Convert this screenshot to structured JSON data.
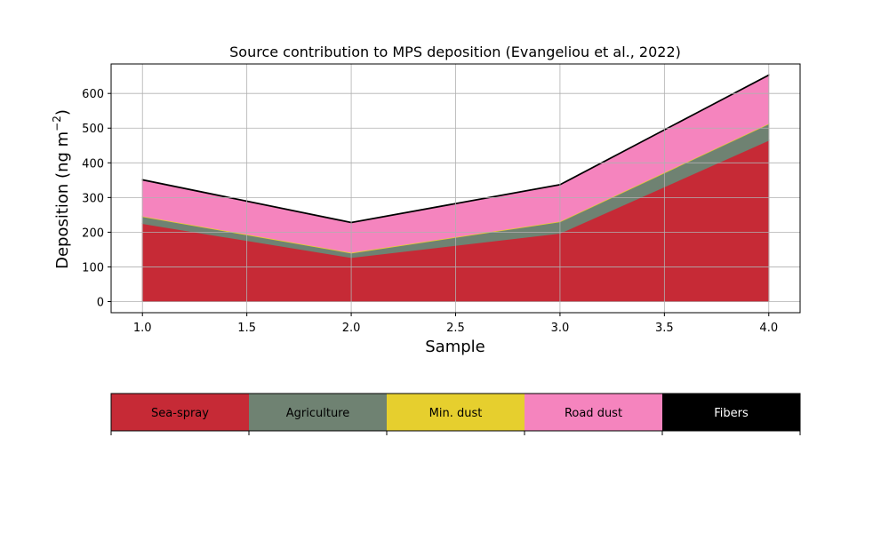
{
  "chart_data": {
    "type": "area",
    "stacked": true,
    "title": "Source contribution to MPS deposition (Evangeliou et al., 2022)",
    "xlabel": "Sample",
    "ylabel": "Deposition (ng m",
    "ylabel_sup": "−2",
    "ylabel_close": ")",
    "x": [
      1.0,
      2.0,
      3.0,
      4.0
    ],
    "xlim": [
      0.85,
      4.15
    ],
    "ylim": [
      -32,
      685
    ],
    "xticks": [
      1.0,
      1.5,
      2.0,
      2.5,
      3.0,
      3.5,
      4.0
    ],
    "xtick_labels": [
      "1.0",
      "1.5",
      "2.0",
      "2.5",
      "3.0",
      "3.5",
      "4.0"
    ],
    "yticks": [
      0,
      100,
      200,
      300,
      400,
      500,
      600
    ],
    "ytick_labels": [
      "0",
      "100",
      "200",
      "300",
      "400",
      "500",
      "600"
    ],
    "grid": true,
    "series": [
      {
        "name": "Sea-spray",
        "color": "#c62a36",
        "text_color": "#000000",
        "values": [
          225,
          127,
          197,
          465
        ]
      },
      {
        "name": "Agriculture",
        "color": "#6f8272",
        "text_color": "#000000",
        "values": [
          20,
          13,
          33,
          47
        ]
      },
      {
        "name": "Min. dust",
        "color": "#e6cf2e",
        "text_color": "#000000",
        "values": [
          2,
          2,
          2,
          2
        ]
      },
      {
        "name": "Road dust",
        "color": "#f584be",
        "text_color": "#000000",
        "values": [
          103,
          85,
          104,
          138
        ]
      },
      {
        "name": "Fibers",
        "color": "#000000",
        "text_color": "#ffffff",
        "values": [
          2,
          2,
          2,
          2
        ]
      }
    ],
    "legend_placement": "bottom"
  }
}
